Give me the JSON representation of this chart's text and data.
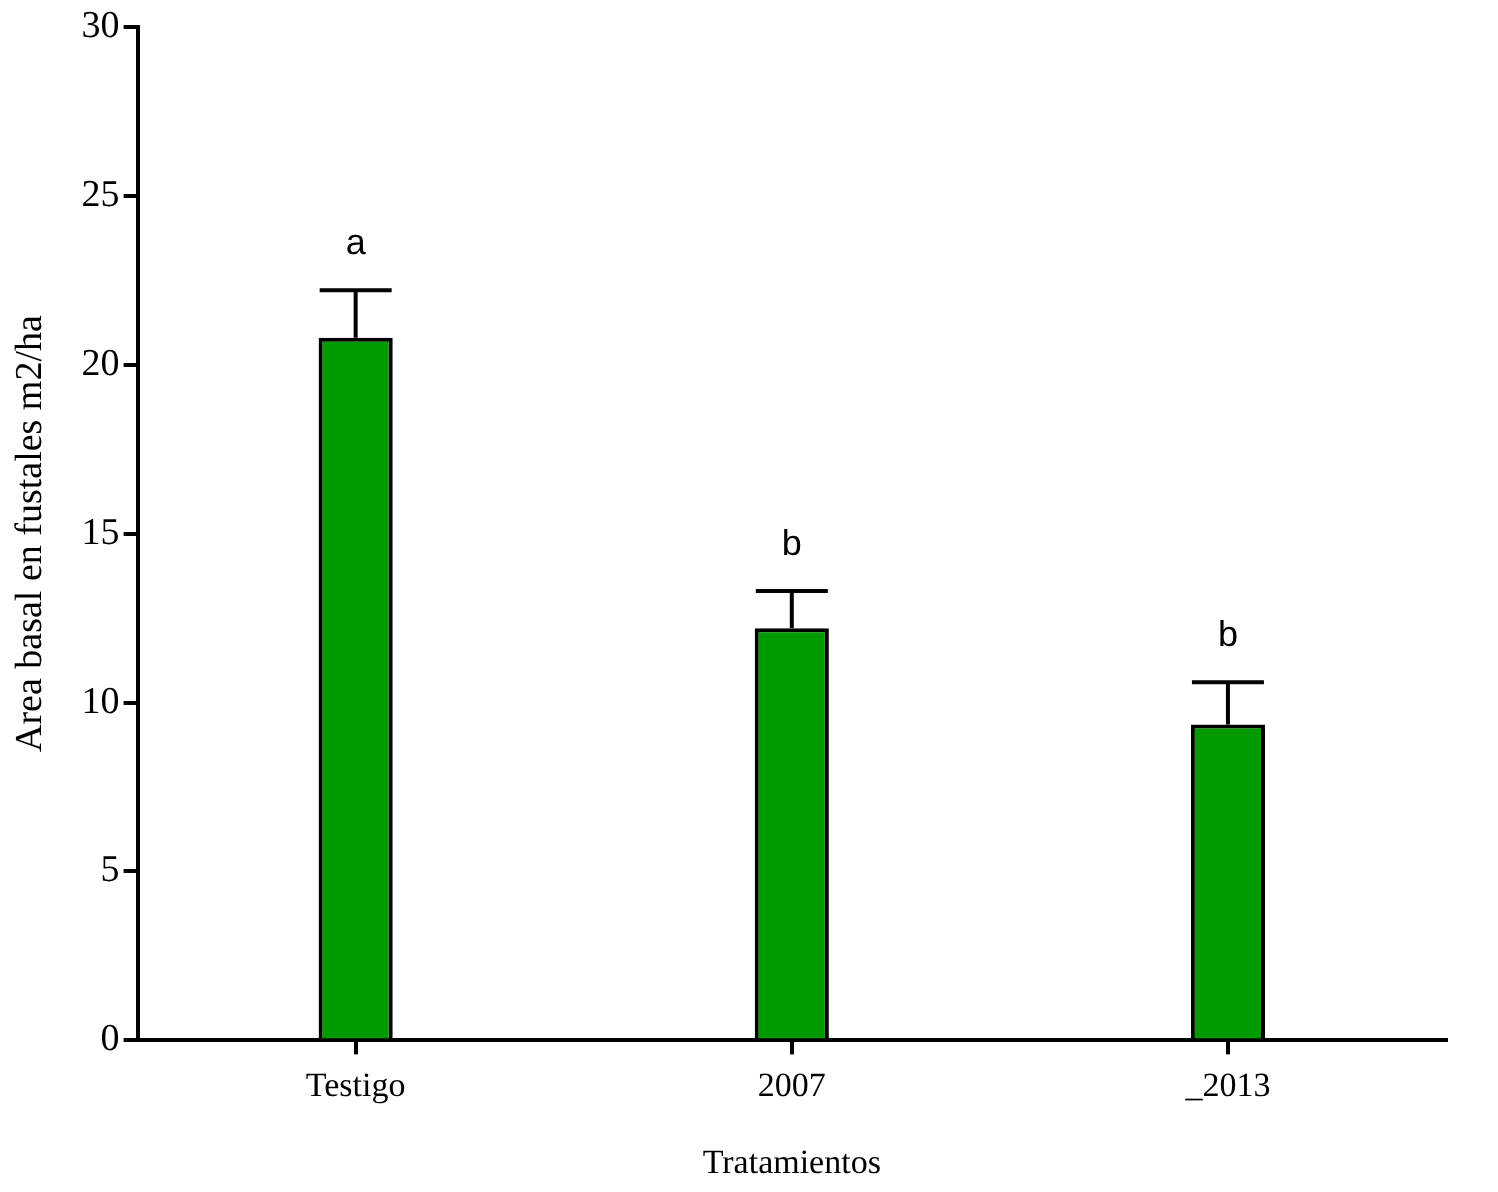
{
  "chart_data": {
    "type": "bar",
    "xlabel": "Tratamientos",
    "ylabel": "Area basal en fustales m2/ha",
    "categories": [
      "Testigo",
      "2007",
      "_2013"
    ],
    "values": [
      20.8,
      12.2,
      9.35
    ],
    "color": "#009900",
    "errors": [
      [
        20.8,
        22.2
      ],
      [
        12.2,
        13.3
      ],
      [
        9.35,
        10.6
      ]
    ],
    "ylim": [
      0,
      30
    ],
    "yticks": [
      0,
      5,
      10,
      15,
      20,
      25,
      30
    ],
    "grid": false,
    "legend": false,
    "annotations": [
      "a",
      "b",
      "b"
    ]
  }
}
